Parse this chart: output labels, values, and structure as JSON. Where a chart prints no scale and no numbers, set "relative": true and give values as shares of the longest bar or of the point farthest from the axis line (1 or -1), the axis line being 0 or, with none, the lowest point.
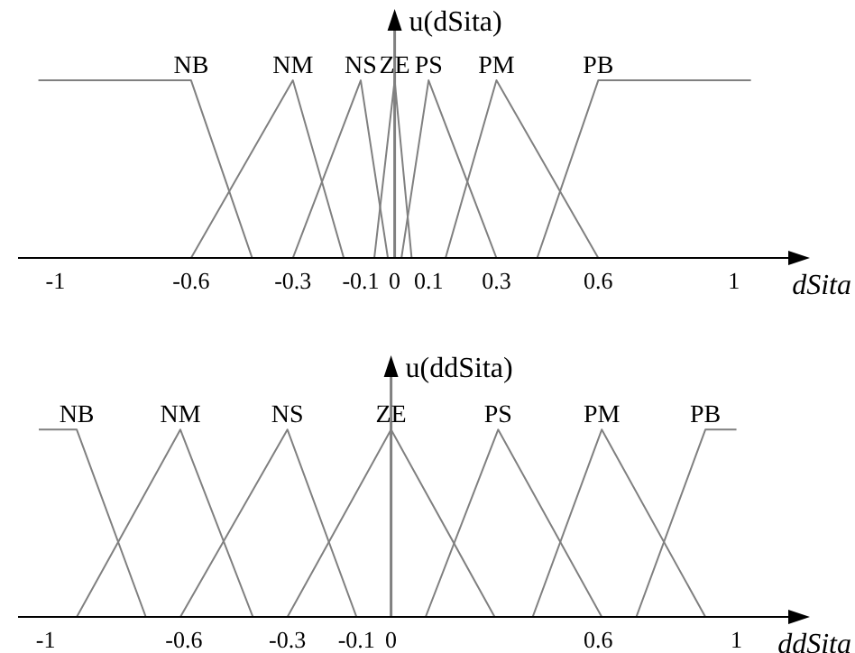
{
  "chart_data": [
    {
      "type": "line",
      "relative": true,
      "xlabel": "dSita",
      "ylabel": "u(dSita)",
      "xlim": [
        -1.11,
        1.16
      ],
      "xticks": [
        -1,
        -0.6,
        -0.3,
        -0.1,
        0,
        0.1,
        0.3,
        0.6,
        1
      ],
      "tick_labels": "x",
      "legend": false,
      "marker": "none",
      "line_style": "solid",
      "series": [
        {
          "name": "NB",
          "color": "#808080",
          "x": [
            -1.05,
            -0.6,
            -0.42
          ],
          "values": [
            1,
            1,
            0
          ]
        },
        {
          "name": "NM",
          "color": "#808080",
          "x": [
            -0.6,
            -0.3,
            -0.15
          ],
          "values": [
            0,
            1,
            0
          ]
        },
        {
          "name": "NS",
          "color": "#808080",
          "x": [
            -0.3,
            -0.1,
            -0.02
          ],
          "values": [
            0,
            1,
            0
          ]
        },
        {
          "name": "ZE",
          "color": "#808080",
          "x": [
            -0.06,
            0,
            0.05
          ],
          "values": [
            0,
            1,
            0
          ]
        },
        {
          "name": "PS",
          "color": "#808080",
          "x": [
            0.02,
            0.1,
            0.3
          ],
          "values": [
            0,
            1,
            0
          ]
        },
        {
          "name": "PM",
          "color": "#808080",
          "x": [
            0.15,
            0.3,
            0.6
          ],
          "values": [
            0,
            1,
            0
          ]
        },
        {
          "name": "PB",
          "color": "#808080",
          "x": [
            0.42,
            0.6,
            1.05
          ],
          "values": [
            0,
            1,
            1
          ]
        }
      ]
    },
    {
      "type": "line",
      "relative": true,
      "xlabel": "ddSita",
      "ylabel": "u(ddSita)",
      "xlim": [
        -1.08,
        1.15
      ],
      "xticks": [
        -1,
        -0.6,
        -0.3,
        -0.1,
        0,
        0.6,
        1
      ],
      "tick_labels": "x",
      "legend": false,
      "marker": "none",
      "line_style": "solid",
      "series": [
        {
          "name": "NB",
          "color": "#808080",
          "x": [
            -1.02,
            -0.91,
            -0.71
          ],
          "values": [
            1,
            1,
            0
          ]
        },
        {
          "name": "NM",
          "color": "#808080",
          "x": [
            -0.91,
            -0.61,
            -0.4
          ],
          "values": [
            0,
            1,
            0
          ]
        },
        {
          "name": "NS",
          "color": "#808080",
          "x": [
            -0.61,
            -0.3,
            -0.1
          ],
          "values": [
            0,
            1,
            0
          ]
        },
        {
          "name": "ZE",
          "color": "#808080",
          "x": [
            -0.3,
            0,
            0.3
          ],
          "values": [
            0,
            1,
            0
          ]
        },
        {
          "name": "PS",
          "color": "#808080",
          "x": [
            0.1,
            0.31,
            0.61
          ],
          "values": [
            0,
            1,
            0
          ]
        },
        {
          "name": "PM",
          "color": "#808080",
          "x": [
            0.41,
            0.61,
            0.91
          ],
          "values": [
            0,
            1,
            0
          ]
        },
        {
          "name": "PB",
          "color": "#808080",
          "x": [
            0.71,
            0.91,
            1.0
          ],
          "values": [
            0,
            1,
            1
          ]
        }
      ]
    }
  ]
}
